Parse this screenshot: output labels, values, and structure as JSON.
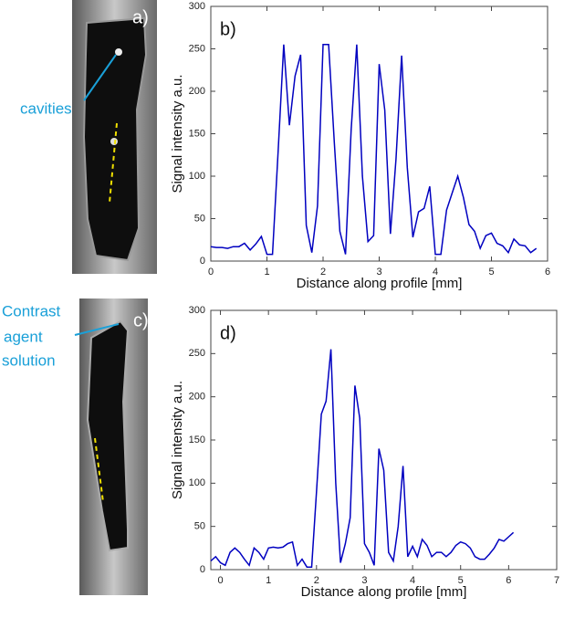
{
  "chart_data": [
    {
      "type": "line",
      "label": "b)",
      "xlabel": "Distance along profile [mm]",
      "ylabel": "Signal intensity a.u.",
      "x": [
        0,
        0.1,
        0.2,
        0.3,
        0.4,
        0.5,
        0.6,
        0.7,
        0.8,
        0.9,
        1.0,
        1.1,
        1.2,
        1.3,
        1.4,
        1.5,
        1.6,
        1.7,
        1.8,
        1.9,
        2.0,
        2.1,
        2.2,
        2.3,
        2.4,
        2.5,
        2.6,
        2.7,
        2.8,
        2.9,
        3.0,
        3.1,
        3.2,
        3.3,
        3.4,
        3.5,
        3.6,
        3.7,
        3.8,
        3.9,
        4.0,
        4.1,
        4.2,
        4.3,
        4.4,
        4.5,
        4.6,
        4.7,
        4.8,
        4.9,
        5.0,
        5.1,
        5.2,
        5.3,
        5.4,
        5.5,
        5.6,
        5.7,
        5.8
      ],
      "series": [
        {
          "color": "#0000c0",
          "values": [
            17,
            16,
            16,
            15,
            17,
            17,
            21,
            13,
            20,
            29,
            8,
            8,
            130,
            255,
            160,
            218,
            243,
            42,
            10,
            65,
            255,
            255,
            140,
            35,
            8,
            155,
            255,
            100,
            23,
            30,
            232,
            178,
            32,
            120,
            242,
            110,
            28,
            58,
            62,
            88,
            8,
            8,
            60,
            80,
            100,
            75,
            43,
            35,
            15,
            30,
            33,
            21,
            18,
            10,
            26,
            19,
            18,
            10,
            15
          ]
        }
      ],
      "xlim": [
        0,
        6
      ],
      "ylim": [
        0,
        300
      ],
      "xticks": [
        0,
        1,
        2,
        3,
        4,
        5,
        6
      ],
      "yticks": [
        0,
        50,
        100,
        150,
        200,
        250,
        300
      ]
    },
    {
      "type": "line",
      "label": "d)",
      "xlabel": "Distance along profile [mm]",
      "ylabel": "Signal intensity a.u.",
      "x": [
        -0.2,
        -0.1,
        0,
        0.1,
        0.2,
        0.3,
        0.4,
        0.5,
        0.6,
        0.7,
        0.8,
        0.9,
        1.0,
        1.1,
        1.2,
        1.3,
        1.4,
        1.5,
        1.6,
        1.7,
        1.8,
        1.9,
        2.0,
        2.1,
        2.2,
        2.3,
        2.4,
        2.5,
        2.6,
        2.7,
        2.8,
        2.9,
        3.0,
        3.1,
        3.2,
        3.3,
        3.4,
        3.5,
        3.6,
        3.7,
        3.8,
        3.9,
        4.0,
        4.1,
        4.2,
        4.3,
        4.4,
        4.5,
        4.6,
        4.7,
        4.8,
        4.9,
        5.0,
        5.1,
        5.2,
        5.3,
        5.4,
        5.5,
        5.6,
        5.7,
        5.8,
        5.9,
        6.0,
        6.1
      ],
      "series": [
        {
          "color": "#0000c0",
          "values": [
            10,
            15,
            8,
            5,
            20,
            25,
            20,
            12,
            5,
            25,
            20,
            12,
            25,
            26,
            25,
            26,
            30,
            32,
            5,
            12,
            3,
            3,
            90,
            180,
            195,
            255,
            100,
            8,
            30,
            60,
            213,
            175,
            30,
            20,
            5,
            140,
            115,
            20,
            10,
            50,
            120,
            15,
            27,
            15,
            35,
            28,
            15,
            20,
            20,
            15,
            20,
            28,
            32,
            30,
            25,
            15,
            12,
            12,
            18,
            25,
            35,
            33,
            38,
            43
          ]
        }
      ],
      "xlim": [
        -0.2,
        7
      ],
      "ylim": [
        0,
        300
      ],
      "xticks": [
        0,
        1,
        2,
        3,
        4,
        5,
        6,
        7
      ],
      "yticks": [
        0,
        50,
        100,
        150,
        200,
        250,
        300
      ]
    }
  ],
  "images": [
    {
      "label": "a)",
      "annotation": [
        "cavities"
      ]
    },
    {
      "label": "c)",
      "annotation": [
        "Contrast",
        "agent",
        "solution"
      ]
    }
  ]
}
